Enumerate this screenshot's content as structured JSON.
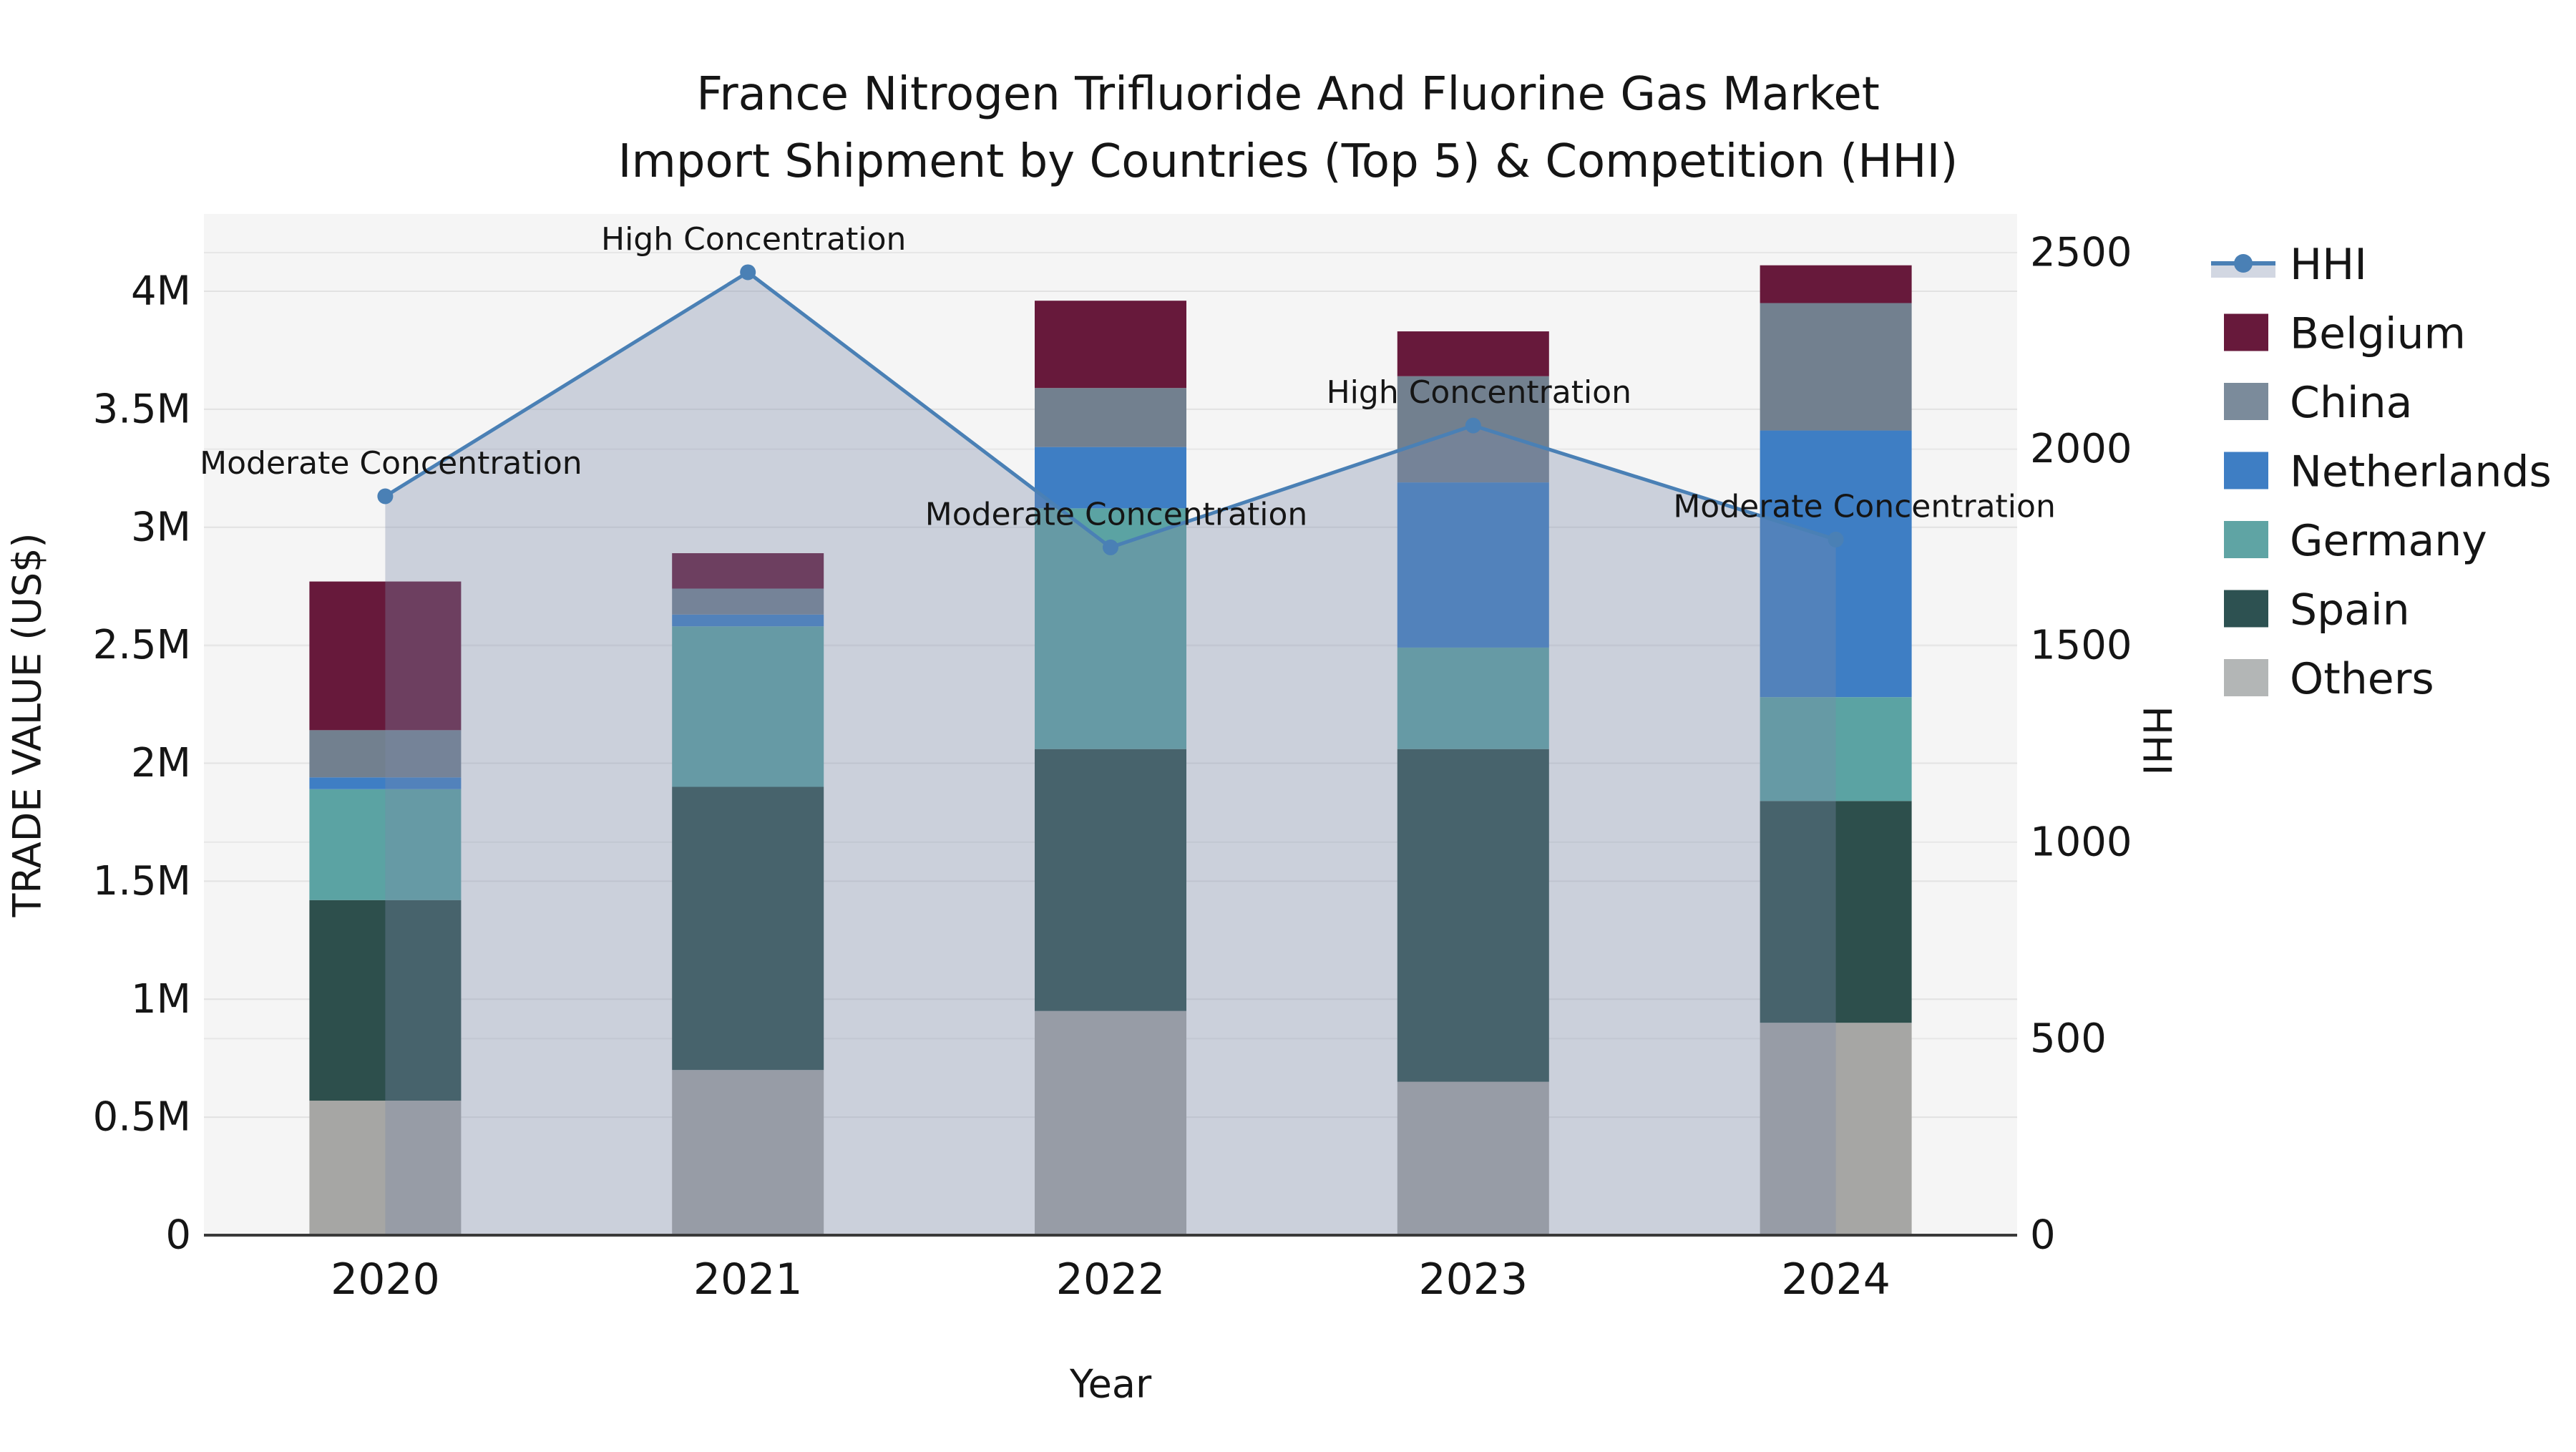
{
  "title": {
    "line1": "France Nitrogen Trifluoride And Fluorine Gas Market",
    "line2": "Import Shipment by Countries (Top 5) & Competition (HHI)"
  },
  "axes": {
    "x_label": "Year",
    "y_left_label": "TRADE VALUE (US$)",
    "y_right_label": "HHI",
    "x_ticks": [
      "2020",
      "2021",
      "2022",
      "2023",
      "2024"
    ],
    "y_left_ticks": [
      {
        "label": "0",
        "value": 0
      },
      {
        "label": "0.5M",
        "value": 0.5
      },
      {
        "label": "1M",
        "value": 1
      },
      {
        "label": "1.5M",
        "value": 1.5
      },
      {
        "label": "2M",
        "value": 2
      },
      {
        "label": "2.5M",
        "value": 2.5
      },
      {
        "label": "3M",
        "value": 3
      },
      {
        "label": "3.5M",
        "value": 3.5
      },
      {
        "label": "4M",
        "value": 4
      }
    ],
    "y_right_ticks": [
      {
        "label": "0",
        "value": 0
      },
      {
        "label": "500",
        "value": 500
      },
      {
        "label": "1000",
        "value": 1000
      },
      {
        "label": "1500",
        "value": 1500
      },
      {
        "label": "2000",
        "value": 2000
      },
      {
        "label": "2500",
        "value": 2500
      }
    ]
  },
  "chart_data": {
    "type": "bar+line",
    "title": "France Nitrogen Trifluoride And Fluorine Gas Market Import Shipment by Countries (Top 5) & Competition (HHI)",
    "xlabel": "Year",
    "ylabel_left": "TRADE VALUE (US$)",
    "ylabel_right": "HHI",
    "categories": [
      "2020",
      "2021",
      "2022",
      "2023",
      "2024"
    ],
    "bar_units": "million US$",
    "stack_order_bottom_to_top": [
      "Others",
      "Spain",
      "Germany",
      "Netherlands",
      "China",
      "Belgium"
    ],
    "bar_series": [
      {
        "name": "Others",
        "color": "#a6a6a4",
        "values": [
          0.57,
          0.7,
          0.95,
          0.65,
          0.9
        ]
      },
      {
        "name": "Spain",
        "color": "#2d4f4c",
        "values": [
          0.85,
          1.2,
          1.11,
          1.41,
          0.94
        ]
      },
      {
        "name": "Germany",
        "color": "#5ba3a3",
        "values": [
          0.47,
          0.68,
          1.02,
          0.43,
          0.44
        ]
      },
      {
        "name": "Netherlands",
        "color": "#3e7ec4",
        "values": [
          0.05,
          0.05,
          0.26,
          0.7,
          1.13
        ]
      },
      {
        "name": "China",
        "color": "#72808f",
        "values": [
          0.2,
          0.11,
          0.25,
          0.45,
          0.54
        ]
      },
      {
        "name": "Belgium",
        "color": "#67193b",
        "values": [
          0.63,
          0.15,
          0.37,
          0.19,
          0.16
        ]
      }
    ],
    "bar_totals": [
      2.77,
      2.89,
      3.96,
      3.83,
      4.11
    ],
    "line_series": {
      "name": "HHI",
      "color": "#4a80b5",
      "fill_color": "rgba(122,137,170,0.34)",
      "values": [
        1880,
        2450,
        1750,
        2060,
        1770
      ]
    },
    "annotations": [
      "Moderate Concentration",
      "High Concentration",
      "Moderate Concentration",
      "High Concentration",
      "Moderate Concentration"
    ],
    "ylim_left": [
      0,
      4.33
    ],
    "ylim_right": [
      0,
      2600
    ],
    "grid": true,
    "plot_background": "#f5f5f5",
    "legend_position": "right"
  },
  "legend": {
    "items": [
      {
        "label": "HHI",
        "type": "line",
        "color": "#4a80b5"
      },
      {
        "label": "Belgium",
        "type": "swatch",
        "color": "#67193b"
      },
      {
        "label": "China",
        "type": "swatch",
        "color": "#7b8b9b"
      },
      {
        "label": "Netherlands",
        "type": "swatch",
        "color": "#3e7ec4"
      },
      {
        "label": "Germany",
        "type": "swatch",
        "color": "#5fa4a4"
      },
      {
        "label": "Spain",
        "type": "swatch",
        "color": "#2d5151"
      },
      {
        "label": "Others",
        "type": "swatch",
        "color": "#b3b6b6"
      }
    ]
  }
}
